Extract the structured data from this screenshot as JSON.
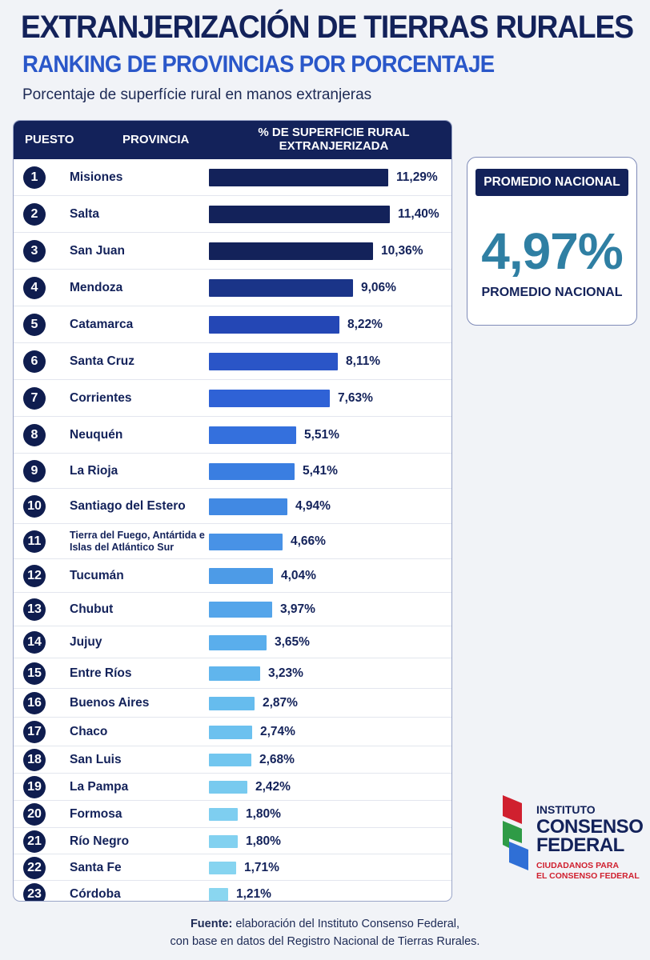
{
  "header": {
    "title": "EXTRANJERIZACIÓN DE TIERRAS RURALES",
    "subtitle": "RANKING DE PROVINCIAS POR PORCENTAJE",
    "description": "Porcentaje de superfície rural en manos extranjeras"
  },
  "table": {
    "col_rank": "PUESTO",
    "col_province": "PROVINCIA",
    "col_pct_line1": "% DE SUPERFICIE RURAL",
    "col_pct_line2": "EXTRANJERIZADA"
  },
  "chart_data": {
    "type": "bar",
    "orientation": "horizontal",
    "categories": [
      "Misiones",
      "Salta",
      "San Juan",
      "Mendoza",
      "Catamarca",
      "Santa Cruz",
      "Corrientes",
      "Neuquén",
      "La Rioja",
      "Santiago del Estero",
      "Tierra del Fuego, Antártida e Islas del Atlántico Sur",
      "Tucumán",
      "Chubut",
      "Jujuy",
      "Entre Ríos",
      "Buenos Aires",
      "Chaco",
      "San Luis",
      "La Pampa",
      "Formosa",
      "Río Negro",
      "Santa Fe",
      "Córdoba"
    ],
    "ranks": [
      "1",
      "2",
      "3",
      "4",
      "5",
      "6",
      "7",
      "8",
      "9",
      "10",
      "11",
      "12",
      "13",
      "14",
      "15",
      "16",
      "17",
      "18",
      "19",
      "20",
      "21",
      "22",
      "23"
    ],
    "values": [
      11.29,
      11.4,
      10.36,
      9.06,
      8.22,
      8.11,
      7.63,
      5.51,
      5.41,
      4.94,
      4.66,
      4.04,
      3.97,
      3.65,
      3.23,
      2.87,
      2.74,
      2.68,
      2.42,
      1.8,
      1.8,
      1.71,
      1.21
    ],
    "value_labels": [
      "11,29%",
      "11,40%",
      "10,36%",
      "9,06%",
      "8,22%",
      "8,11%",
      "7,63%",
      "5,51%",
      "5,41%",
      "4,94%",
      "4,66%",
      "4,04%",
      "3,97%",
      "3,65%",
      "3,23%",
      "2,87%",
      "2,74%",
      "2,68%",
      "2,42%",
      "1,80%",
      "1,80%",
      "1,71%",
      "1,21%"
    ],
    "colors": [
      "#13225a",
      "#13225a",
      "#13225a",
      "#1a3488",
      "#2447b5",
      "#2a55c7",
      "#2f62d6",
      "#3470dd",
      "#3a7ee1",
      "#4189e3",
      "#4892e6",
      "#4d9be7",
      "#54a5ea",
      "#5aaeec",
      "#60b5ed",
      "#66bcee",
      "#6cc1ef",
      "#72c6ef",
      "#78caef",
      "#7ecef0",
      "#82d1f0",
      "#86d4f0",
      "#8ad6f0"
    ]
  },
  "summary": {
    "header": "PROMEDIO NACIONAL",
    "value": "4,97%",
    "label": "PROMEDIO NACIONAL"
  },
  "logo": {
    "line1": "INSTITUTO",
    "line2": "CONSENSO",
    "line3": "FEDERAL",
    "tagline1": "CIUDADANOS PARA",
    "tagline2": "EL CONSENSO FEDERAL",
    "colors": [
      "#d0202f",
      "#2f9b46",
      "#2f6fd6"
    ]
  },
  "footer": {
    "label": "Fuente:",
    "line1_rest": "elaboración del Instituto Consenso Federal,",
    "line2": "con base en datos del Registro Nacional de Tierras Rurales."
  }
}
